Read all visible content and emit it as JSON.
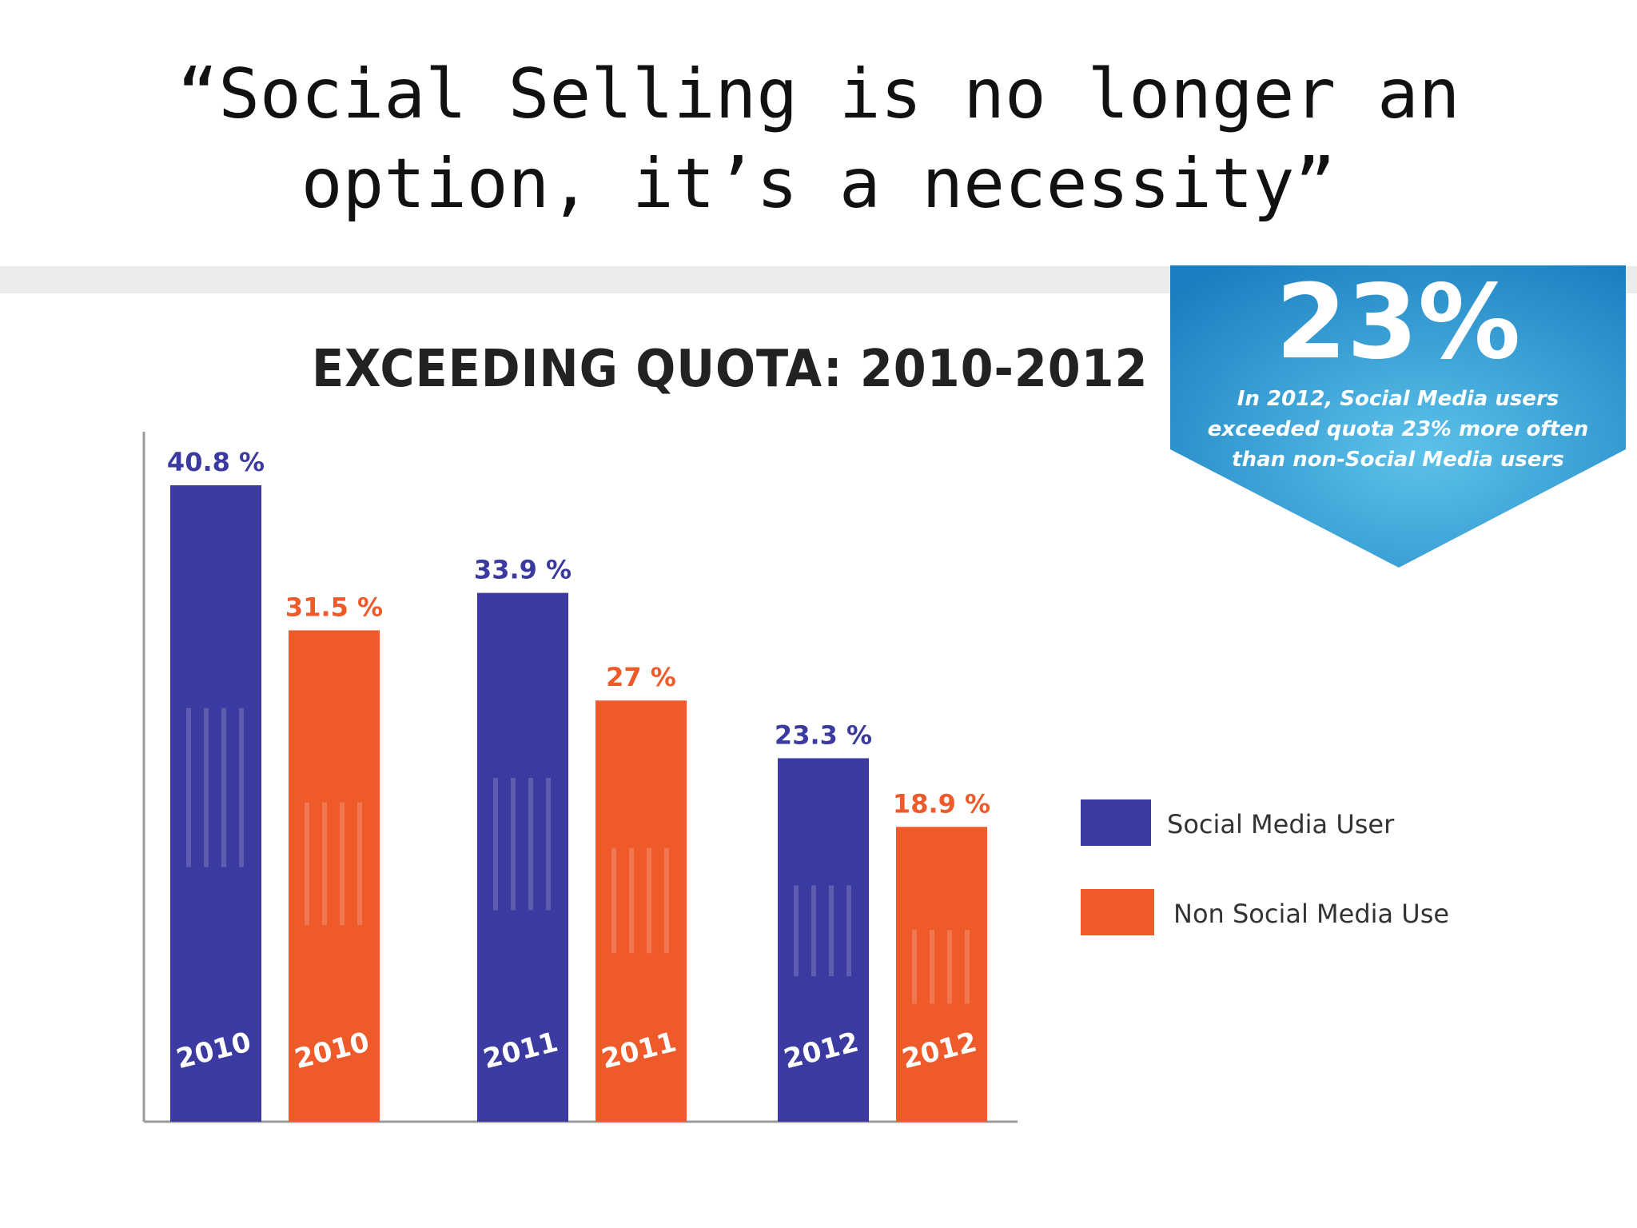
{
  "slide": {
    "title_line1": "“Social Selling is no longer an",
    "title_line2": "option, it’s a necessity”"
  },
  "callout": {
    "headline": "23%",
    "text": "In 2012, Social Media users exceeded quota 23% more often than non-Social Media users",
    "color_top": "#1a7fc0",
    "color_bottom": "#5cc2ea"
  },
  "chart_data": {
    "type": "bar",
    "title": "EXCEEDING QUOTA: 2010-2012",
    "xlabel": "",
    "ylabel": "",
    "ylim": [
      0,
      42
    ],
    "grid": false,
    "legend_position": "right",
    "categories": [
      "2010",
      "2011",
      "2012"
    ],
    "series": [
      {
        "name": "Social Media User",
        "color": "#3a3aa0",
        "values": [
          40.8,
          33.9,
          23.3
        ],
        "data_labels": [
          "40.8 %",
          "33.9 %",
          "23.3 %"
        ],
        "bar_labels": [
          "2010",
          "2011",
          "2012"
        ]
      },
      {
        "name": "Non Social Media Use",
        "color": "#ee5a2a",
        "values": [
          31.5,
          27,
          18.9
        ],
        "data_labels": [
          "31.5 %",
          "27 %",
          "18.9 %"
        ],
        "bar_labels": [
          "2010",
          "2011",
          "2012"
        ]
      }
    ]
  }
}
